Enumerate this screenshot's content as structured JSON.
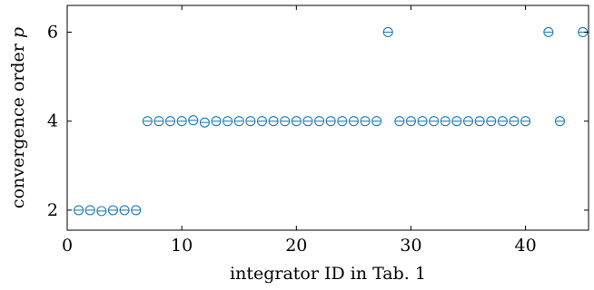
{
  "chart_data": {
    "type": "scatter",
    "title": "",
    "xlabel": "integrator ID in Tab. 1",
    "ylabel_text": "convergence order ",
    "ylabel_symbol": "p",
    "xlim": [
      0,
      45.5
    ],
    "ylim": [
      1.55,
      6.6
    ],
    "xticks": [
      0,
      10,
      20,
      30,
      40
    ],
    "yticks": [
      2,
      4,
      6
    ],
    "marker": "circle-with-horizontal-bar",
    "color": "#1f7fb6",
    "grid": false,
    "legend": "none",
    "x": [
      1,
      2,
      3,
      4,
      5,
      6,
      7,
      8,
      9,
      10,
      11,
      12,
      13,
      14,
      15,
      16,
      17,
      18,
      19,
      20,
      21,
      22,
      23,
      24,
      25,
      26,
      27,
      28,
      29,
      30,
      31,
      32,
      33,
      34,
      35,
      36,
      37,
      38,
      39,
      40,
      42,
      43,
      45
    ],
    "y": [
      2.0,
      2.0,
      1.98,
      2.0,
      2.0,
      2.0,
      4.0,
      4.0,
      4.0,
      4.0,
      4.02,
      3.97,
      4.0,
      4.0,
      4.0,
      4.0,
      4.0,
      4.0,
      4.0,
      4.0,
      4.0,
      4.0,
      4.0,
      4.0,
      4.0,
      4.0,
      4.0,
      6.0,
      4.0,
      4.0,
      4.0,
      4.0,
      4.0,
      4.0,
      4.0,
      4.0,
      4.0,
      4.0,
      4.0,
      4.0,
      6.0,
      4.0,
      6.0
    ]
  }
}
